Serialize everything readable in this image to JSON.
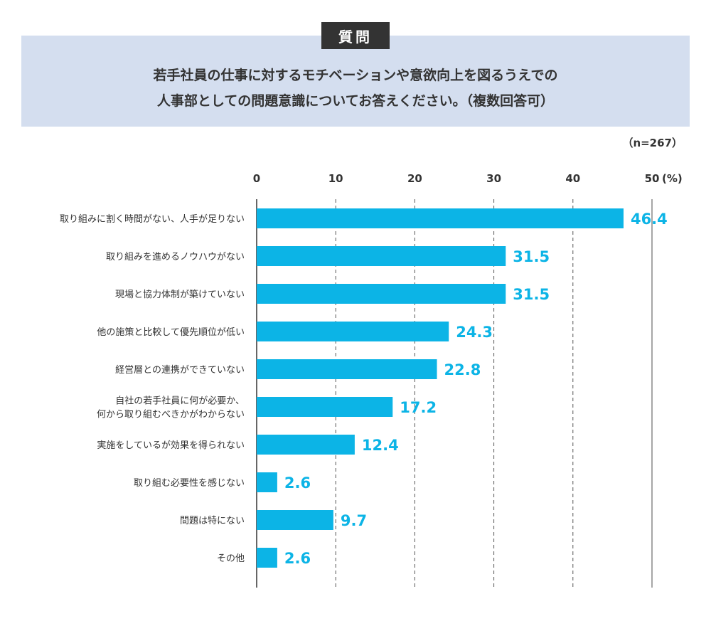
{
  "question": {
    "tag": "質問",
    "lines": [
      "若手社員の仕事に対するモチベーションや意欲向上を図るうえでの",
      "人事部としての問題意識についてお答えください。（複数回答可）"
    ]
  },
  "sample_size": "（n=267）",
  "colors": {
    "bar": "#0cb4e6",
    "value_label": "#0cb4e6",
    "question_bg": "#d4deef",
    "tag_bg": "#333333"
  },
  "chart_data": {
    "type": "bar",
    "orientation": "horizontal",
    "title": "若手社員の仕事に対するモチベーションや意欲向上を図るうえでの人事部としての問題意識についてお答えください。（複数回答可）",
    "xlabel": "(%)",
    "xlim": [
      0,
      50
    ],
    "ticks": [
      0,
      10,
      20,
      30,
      40,
      50
    ],
    "tick_labels": [
      "0",
      "10",
      "20",
      "30",
      "40",
      "50"
    ],
    "unit_label": "(%)",
    "grid": true,
    "categories": [
      [
        "取り組みに割く時間がない、人手が足りない"
      ],
      [
        "取り組みを進めるノウハウがない"
      ],
      [
        "現場と協力体制が築けていない"
      ],
      [
        "他の施策と比較して優先順位が低い"
      ],
      [
        "経営層との連携ができていない"
      ],
      [
        "自社の若手社員に何が必要か、",
        "何から取り組むべきかがわからない"
      ],
      [
        "実施をしているが効果を得られない"
      ],
      [
        "取り組む必要性を感じない"
      ],
      [
        "問題は特にない"
      ],
      [
        "その他"
      ]
    ],
    "values": [
      46.4,
      31.5,
      31.5,
      24.3,
      22.8,
      17.2,
      12.4,
      2.6,
      9.7,
      2.6
    ],
    "value_labels": [
      "46.4",
      "31.5",
      "31.5",
      "24.3",
      "22.8",
      "17.2",
      "12.4",
      "2.6",
      "9.7",
      "2.6"
    ]
  }
}
